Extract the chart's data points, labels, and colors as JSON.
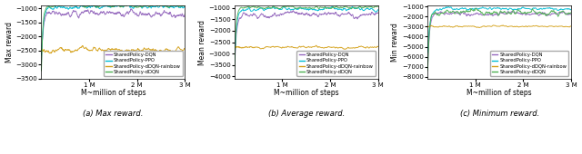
{
  "figsize": [
    6.4,
    1.7
  ],
  "dpi": 100,
  "n_steps": 3000000,
  "colors": {
    "DQN": "#9467bd",
    "PPO": "#00bcd4",
    "rainbow": "#d4a017",
    "dDQN": "#4caf50"
  },
  "legend_labels": [
    "SharedPolicy-DQN",
    "SharedPolicy-PPO",
    "SharedPolicy-dDQN-rainbow",
    "SharedPolicy-dDQN"
  ],
  "subplot_titles": [
    "(a) Max reward.",
    "(b) Average reward.",
    "(c) Minimum reward."
  ],
  "ylabels": [
    "Max reward",
    "Mean reward",
    "Min reward"
  ],
  "xlabel": "M~million of steps",
  "xticks": [
    1000000,
    2000000,
    3000000
  ],
  "xticklabels": [
    "1 M",
    "2 M",
    "3 M"
  ],
  "plots": {
    "max_reward": {
      "DQN": {
        "init": -3200,
        "plateau": -1200,
        "noise": 120,
        "speed": 30,
        "extra_noise": 80
      },
      "PPO": {
        "init": -2800,
        "plateau": -950,
        "noise": 80,
        "speed": 25,
        "extra_noise": 60
      },
      "rainbow": {
        "init": -2500,
        "plateau": -2480,
        "noise": 70,
        "speed": 5,
        "extra_noise": 60
      },
      "dDQN": {
        "init": -3500,
        "plateau": -900,
        "noise": 50,
        "speed": 35,
        "extra_noise": 40
      }
    },
    "mean_reward": {
      "DQN": {
        "init": -3800,
        "plateau": -1300,
        "noise": 120,
        "speed": 28,
        "extra_noise": 80
      },
      "PPO": {
        "init": -3500,
        "plateau": -1050,
        "noise": 80,
        "speed": 25,
        "extra_noise": 60
      },
      "rainbow": {
        "init": -2750,
        "plateau": -2720,
        "noise": 50,
        "speed": 5,
        "extra_noise": 40
      },
      "dDQN": {
        "init": -4000,
        "plateau": -960,
        "noise": 60,
        "speed": 35,
        "extra_noise": 50
      }
    },
    "min_reward": {
      "DQN": {
        "init": -7500,
        "plateau": -1700,
        "noise": 200,
        "speed": 28,
        "extra_noise": 150
      },
      "PPO": {
        "init": -6000,
        "plateau": -1200,
        "noise": 150,
        "speed": 25,
        "extra_noise": 100
      },
      "rainbow": {
        "init": -3000,
        "plateau": -2970,
        "noise": 80,
        "speed": 5,
        "extra_noise": 60
      },
      "dDQN": {
        "init": -8000,
        "plateau": -1600,
        "noise": 200,
        "speed": 35,
        "extra_noise": 200
      }
    }
  },
  "ylims": {
    "max_reward": [
      -3500,
      -900
    ],
    "mean_reward": [
      -4100,
      -900
    ],
    "min_reward": [
      -8200,
      -900
    ]
  },
  "yticks": {
    "max_reward": [
      -3500,
      -3000,
      -2500,
      -2000,
      -1500,
      -1000
    ],
    "mean_reward": [
      -4000,
      -3500,
      -3000,
      -2500,
      -2000,
      -1500,
      -1000
    ],
    "min_reward": [
      -8000,
      -7000,
      -6000,
      -5000,
      -4000,
      -3000,
      -2000,
      -1000
    ]
  }
}
